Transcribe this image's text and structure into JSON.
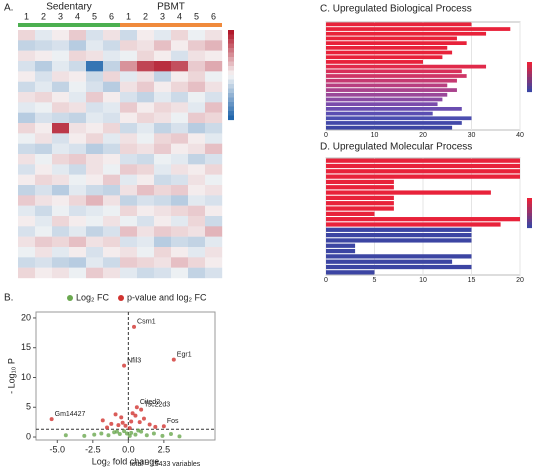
{
  "chart_data": [
    {
      "type": "heatmap",
      "label": "A.",
      "groups": [
        {
          "name": "Sedentary",
          "color": "#4caf50"
        },
        {
          "name": "PBMT",
          "color": "#f08a3c"
        }
      ],
      "columns": [
        "1",
        "2",
        "3",
        "4",
        "5",
        "6",
        "1",
        "2",
        "3",
        "4",
        "5",
        "6"
      ],
      "zlim": [
        -2,
        2
      ],
      "matrix": [
        [
          0.3,
          -0.2,
          0.1,
          0.4,
          -0.3,
          0.2,
          -0.4,
          0.1,
          -0.2,
          0.3,
          -0.1,
          0.2
        ],
        [
          -0.5,
          -0.4,
          -0.3,
          -0.6,
          -0.2,
          -0.4,
          0.3,
          0.2,
          0.5,
          0.1,
          0.4,
          0.6
        ],
        [
          0.2,
          0.1,
          -0.1,
          0.3,
          0.2,
          -0.2,
          -0.1,
          0.3,
          0.1,
          -0.3,
          0.2,
          0.1
        ],
        [
          -0.3,
          -0.6,
          -0.2,
          -0.4,
          -1.8,
          -0.5,
          0.9,
          1.6,
          1.8,
          1.5,
          0.4,
          0.7
        ],
        [
          0.1,
          -0.3,
          0.2,
          0.1,
          -0.4,
          0.3,
          -0.2,
          0.2,
          -0.5,
          0.1,
          0.3,
          -0.1
        ],
        [
          -0.4,
          -0.2,
          -0.5,
          -0.1,
          -0.3,
          -0.6,
          0.2,
          0.4,
          0.1,
          0.3,
          0.5,
          0.2
        ],
        [
          0.2,
          0.3,
          0.1,
          -0.2,
          0.4,
          0.1,
          -0.3,
          -0.5,
          -0.2,
          -0.4,
          -0.1,
          -0.3
        ],
        [
          -0.2,
          -0.1,
          0.3,
          0.2,
          -0.3,
          -0.2,
          0.4,
          0.1,
          0.3,
          0.2,
          -0.2,
          0.5
        ],
        [
          -0.6,
          -0.3,
          -0.4,
          -0.5,
          -0.2,
          -0.3,
          0.1,
          0.3,
          0.2,
          -0.1,
          0.4,
          0.3
        ],
        [
          0.3,
          0.1,
          1.7,
          0.2,
          0.1,
          0.3,
          -0.4,
          -0.2,
          -0.5,
          -0.3,
          -0.6,
          -0.4
        ],
        [
          -0.1,
          0.2,
          -0.3,
          0.1,
          0.3,
          -0.2,
          0.2,
          -0.1,
          0.3,
          0.4,
          0.1,
          -0.2
        ],
        [
          -0.4,
          -0.5,
          -0.2,
          -0.3,
          -0.6,
          -0.4,
          0.3,
          0.2,
          0.4,
          0.1,
          0.2,
          0.5
        ],
        [
          0.2,
          -0.1,
          0.3,
          0.4,
          0.2,
          0.1,
          -0.3,
          -0.4,
          -0.1,
          -0.2,
          -0.5,
          -0.3
        ],
        [
          -0.3,
          0.1,
          -0.2,
          -0.4,
          0.2,
          -0.1,
          0.4,
          0.3,
          -0.2,
          0.2,
          0.1,
          0.3
        ],
        [
          0.1,
          0.3,
          0.2,
          -0.1,
          0.1,
          0.4,
          -0.2,
          0.1,
          -0.4,
          -0.3,
          0.2,
          -0.1
        ],
        [
          -0.5,
          -0.3,
          -0.6,
          -0.2,
          -0.4,
          -0.5,
          0.2,
          0.5,
          0.3,
          0.4,
          0.1,
          0.2
        ],
        [
          0.4,
          0.2,
          0.1,
          0.3,
          0.6,
          0.2,
          -0.5,
          -0.3,
          -0.4,
          -0.6,
          -0.2,
          -0.3
        ],
        [
          -0.2,
          -0.4,
          -0.1,
          -0.3,
          -0.2,
          -0.1,
          0.3,
          0.1,
          0.2,
          0.3,
          0.4,
          0.1
        ],
        [
          0.1,
          -0.2,
          0.3,
          0.1,
          -0.1,
          0.2,
          -0.1,
          -0.3,
          0.1,
          -0.2,
          0.3,
          -0.4
        ],
        [
          -0.3,
          -0.1,
          -0.4,
          -0.2,
          -0.5,
          -0.3,
          0.5,
          0.2,
          0.4,
          0.3,
          0.2,
          0.6
        ],
        [
          0.2,
          0.4,
          0.3,
          0.5,
          0.2,
          0.3,
          -0.3,
          -0.2,
          -0.6,
          -0.4,
          -0.5,
          -0.2
        ],
        [
          -0.1,
          0.2,
          -0.2,
          0.1,
          -0.3,
          0.1,
          0.2,
          -0.1,
          0.3,
          0.1,
          -0.2,
          0.2
        ],
        [
          -0.4,
          -0.3,
          -0.5,
          -0.6,
          -0.2,
          -0.4,
          0.4,
          0.3,
          0.2,
          0.5,
          0.3,
          0.1
        ],
        [
          0.3,
          0.1,
          0.2,
          -0.1,
          0.4,
          0.2,
          -0.2,
          -0.4,
          -0.3,
          -0.1,
          -0.5,
          -0.3
        ]
      ]
    },
    {
      "type": "volcano",
      "label": "B.",
      "xlabel": "Log₂ fold change",
      "ylabel": "- Log₁₀ P",
      "xlim": [
        -6.5,
        6.1
      ],
      "ylim": [
        -0.5,
        21
      ],
      "xticks": [
        {
          "value": -5,
          "label": "-5.0"
        },
        {
          "value": -2.5,
          "label": "-2.5"
        },
        {
          "value": 0,
          "label": "0.0"
        },
        {
          "value": 2.5,
          "label": "2.5"
        }
      ],
      "yticks": [
        0,
        5,
        10,
        15,
        20
      ],
      "p_cutoff": 1.3,
      "fc_cutoff": 0,
      "series": [
        {
          "name": "Log₂ FC",
          "color": "#6aa84f",
          "x": [
            -3.1,
            -2.4,
            -1.9,
            -1.4,
            -1,
            -0.6,
            -0.3,
            0.2,
            0.5,
            0.9,
            1.3,
            1.8,
            2.4,
            3,
            3.6,
            -4.4,
            0.1,
            -0.1,
            0.7,
            -0.8
          ],
          "y": [
            0.2,
            0.4,
            0.6,
            0.3,
            0.8,
            0.5,
            1,
            0.7,
            0.4,
            0.9,
            0.3,
            0.6,
            0.2,
            0.5,
            0.1,
            0.3,
            0.2,
            0.6,
            1.1,
            0.9
          ]
        },
        {
          "name": "p-value and log₂ FC",
          "color": "#d1332f",
          "x": [
            0.4,
            -0.3,
            3.2,
            0.6,
            0.9,
            -0.9,
            -5.4,
            2.5,
            -1.8,
            -1.2,
            -0.5,
            0.3,
            0.8,
            1.1,
            -0.7,
            0.2,
            -0.2,
            1.5,
            -1.5,
            0.5,
            1.9,
            -0.4,
            0.1
          ],
          "y": [
            18.5,
            12,
            13,
            5,
            4.6,
            3.8,
            3,
            1.8,
            2.8,
            2.2,
            3.3,
            4,
            2.5,
            3.1,
            2,
            2.6,
            1.9,
            2.1,
            1.6,
            3.6,
            1.7,
            2.4,
            1.5
          ]
        }
      ],
      "annotations": [
        {
          "text": "Csrn1",
          "x": 0.4,
          "y": 18.5
        },
        {
          "text": "Nfil3",
          "x": -0.3,
          "y": 12
        },
        {
          "text": "Egr1",
          "x": 3.2,
          "y": 13
        },
        {
          "text": "Cited2",
          "x": 0.6,
          "y": 5
        },
        {
          "text": "Tsc22d3",
          "x": 0.9,
          "y": 4.6
        },
        {
          "text": "Gm14427",
          "x": -5.4,
          "y": 3
        },
        {
          "text": "Fos",
          "x": 2.5,
          "y": 1.8
        }
      ],
      "footnote": "total = 15433 variables"
    },
    {
      "type": "barh",
      "title": "C. Upregulated Biological Process",
      "xlim": [
        0,
        40
      ],
      "xticks": [
        0,
        10,
        20,
        30,
        40
      ],
      "values": [
        30,
        38,
        33,
        27,
        29,
        25,
        26,
        24,
        20,
        33,
        28,
        29,
        27,
        25,
        27,
        25,
        24,
        23,
        28,
        22,
        30,
        28,
        26
      ],
      "colors": [
        "#e8223a",
        "#e8223a",
        "#e8223a",
        "#e8223a",
        "#e8223a",
        "#e8223a",
        "#e8223a",
        "#e8223a",
        "#e8223a",
        "#e02a4a",
        "#d8305a",
        "#cf3566",
        "#c53a72",
        "#b83f80",
        "#a9438d",
        "#9a4799",
        "#8a4aa3",
        "#7a4cab",
        "#6a4db0",
        "#5b4eb2",
        "#4c4eb0",
        "#4349a9",
        "#3c45a3"
      ]
    },
    {
      "type": "barh",
      "title": "D. Upregulated Molecular Process",
      "xlim": [
        0,
        20
      ],
      "xticks": [
        0,
        5,
        10,
        15,
        20
      ],
      "values": [
        20,
        20,
        20,
        20,
        7,
        7,
        17,
        7,
        7,
        7,
        5,
        20,
        18,
        15,
        15,
        15,
        3,
        3,
        15,
        13,
        15,
        5
      ],
      "colors": [
        "#e8223a",
        "#e8223a",
        "#e8223a",
        "#e8223a",
        "#e8223a",
        "#e8223a",
        "#e8223a",
        "#e8223a",
        "#e8223a",
        "#e8223a",
        "#e8223a",
        "#e8223a",
        "#e8223a",
        "#3c45a3",
        "#3c45a3",
        "#3c45a3",
        "#3c45a3",
        "#3c45a3",
        "#3c45a3",
        "#3c45a3",
        "#3c45a3",
        "#3c45a3"
      ]
    }
  ]
}
